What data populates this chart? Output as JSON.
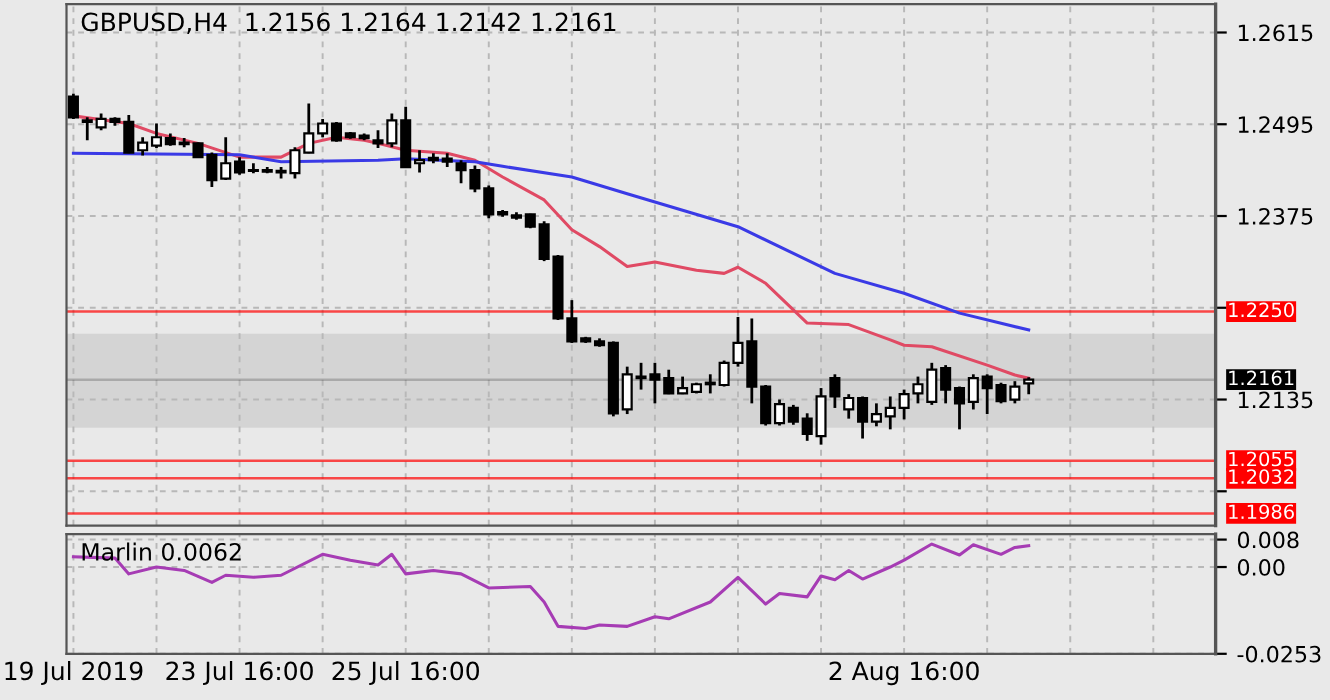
{
  "chart_data": [
    {
      "type": "candlestick",
      "title": "GBPUSD,H4  1.2156 1.2164 1.2142 1.2161",
      "categories": [
        "19 Jul 2019",
        null,
        null,
        null,
        null,
        null,
        null,
        null,
        null,
        null,
        null,
        null,
        "23 Jul 16:00",
        null,
        null,
        null,
        null,
        null,
        null,
        null,
        null,
        null,
        null,
        null,
        "25 Jul 16:00",
        null,
        null,
        null,
        null,
        null,
        null,
        null,
        null,
        null,
        null,
        null,
        null,
        null,
        null,
        null,
        null,
        null,
        null,
        null,
        null,
        null,
        null,
        null,
        null,
        null,
        null,
        null,
        null,
        null,
        null,
        null,
        null,
        null,
        null,
        null,
        "2 Aug 16:00",
        null,
        null,
        null,
        null,
        null,
        null,
        null,
        null,
        null,
        null,
        null,
        null,
        null,
        null,
        null,
        null,
        null,
        null,
        null,
        null,
        null,
        null
      ],
      "ohlc": [
        [
          1.2531,
          1.2535,
          1.2502,
          1.2504
        ],
        [
          1.25,
          1.2504,
          1.2474,
          1.2498
        ],
        [
          1.2491,
          1.2509,
          1.2487,
          1.2502
        ],
        [
          1.2502,
          1.2504,
          1.2493,
          1.2498
        ],
        [
          1.2498,
          1.2507,
          1.2457,
          1.2458
        ],
        [
          1.2461,
          1.2478,
          1.2454,
          1.2471
        ],
        [
          1.2467,
          1.2496,
          1.2464,
          1.2478
        ],
        [
          1.2477,
          1.2483,
          1.2467,
          1.2469
        ],
        [
          1.2471,
          1.2477,
          1.2465,
          1.2469
        ],
        [
          1.247,
          1.2471,
          1.2451,
          1.2452
        ],
        [
          1.2455,
          1.2458,
          1.2413,
          1.2422
        ],
        [
          1.2424,
          1.2478,
          1.2422,
          1.2444
        ],
        [
          1.2446,
          1.2452,
          1.2429,
          1.2432
        ],
        [
          1.2435,
          1.2444,
          1.2431,
          1.2434
        ],
        [
          1.2435,
          1.2439,
          1.2431,
          1.2433
        ],
        [
          1.2434,
          1.2439,
          1.2424,
          1.2432
        ],
        [
          1.2431,
          1.2465,
          1.2424,
          1.2461
        ],
        [
          1.2458,
          1.2522,
          1.2457,
          1.2483
        ],
        [
          1.2483,
          1.2502,
          1.2478,
          1.2496
        ],
        [
          1.2496,
          1.2498,
          1.2472,
          1.2474
        ],
        [
          1.2483,
          1.2485,
          1.2476,
          1.2478
        ],
        [
          1.248,
          1.2483,
          1.2474,
          1.2477
        ],
        [
          1.2474,
          1.2487,
          1.2464,
          1.247
        ],
        [
          1.247,
          1.2509,
          1.2465,
          1.25
        ],
        [
          1.25,
          1.2518,
          1.2438,
          1.2439
        ],
        [
          1.2444,
          1.2461,
          1.2432,
          1.2448
        ],
        [
          1.2448,
          1.2457,
          1.2444,
          1.2451
        ],
        [
          1.245,
          1.2457,
          1.2439,
          1.2446
        ],
        [
          1.2444,
          1.2448,
          1.2418,
          1.2435
        ],
        [
          1.2435,
          1.2441,
          1.2406,
          1.2411
        ],
        [
          1.2411,
          1.2415,
          1.2372,
          1.2377
        ],
        [
          1.238,
          1.2383,
          1.2374,
          1.2377
        ],
        [
          1.2376,
          1.238,
          1.237,
          1.2373
        ],
        [
          1.2377,
          1.2378,
          1.2359,
          1.2361
        ],
        [
          1.2364,
          1.2368,
          1.2316,
          1.2319
        ],
        [
          1.2322,
          1.2324,
          1.2239,
          1.2241
        ],
        [
          1.2241,
          1.2265,
          1.2209,
          1.2211
        ],
        [
          1.2215,
          1.2217,
          1.2209,
          1.2211
        ],
        [
          1.2211,
          1.2215,
          1.2204,
          1.2206
        ],
        [
          1.2209,
          1.2211,
          1.2113,
          1.2117
        ],
        [
          1.2122,
          1.2178,
          1.2116,
          1.2168
        ],
        [
          1.2165,
          1.2183,
          1.2148,
          1.2163
        ],
        [
          1.2168,
          1.2183,
          1.213,
          1.2161
        ],
        [
          1.2163,
          1.2174,
          1.2142,
          1.2143
        ],
        [
          1.2143,
          1.2165,
          1.2142,
          1.215
        ],
        [
          1.2145,
          1.2157,
          1.2143,
          1.2155
        ],
        [
          1.2155,
          1.2168,
          1.2143,
          1.2157
        ],
        [
          1.2154,
          1.2186,
          1.2152,
          1.2183
        ],
        [
          1.2183,
          1.2243,
          1.2178,
          1.2209
        ],
        [
          1.2211,
          1.2241,
          1.213,
          1.2152
        ],
        [
          1.2152,
          1.2154,
          1.2101,
          1.2104
        ],
        [
          1.2104,
          1.2135,
          1.2101,
          1.2129
        ],
        [
          1.2124,
          1.2128,
          1.2102,
          1.2106
        ],
        [
          1.211,
          1.2117,
          1.2081,
          1.209
        ],
        [
          1.2087,
          1.215,
          1.2076,
          1.2139
        ],
        [
          1.2163,
          1.2168,
          1.2124,
          1.2139
        ],
        [
          1.2122,
          1.2142,
          1.211,
          1.2137
        ],
        [
          1.2137,
          1.2139,
          1.2084,
          1.2106
        ],
        [
          1.2106,
          1.213,
          1.21,
          1.2116
        ],
        [
          1.2113,
          1.2139,
          1.2096,
          1.2124
        ],
        [
          1.2124,
          1.2148,
          1.2109,
          1.2142
        ],
        [
          1.2143,
          1.2165,
          1.213,
          1.2155
        ],
        [
          1.2132,
          1.2183,
          1.2128,
          1.2174
        ],
        [
          1.2176,
          1.218,
          1.213,
          1.2148
        ],
        [
          1.215,
          1.2152,
          1.2096,
          1.213
        ],
        [
          1.2132,
          1.2168,
          1.2122,
          1.2163
        ],
        [
          1.2165,
          1.2168,
          1.2116,
          1.215
        ],
        [
          1.2154,
          1.2157,
          1.213,
          1.2133
        ],
        [
          1.2135,
          1.2159,
          1.213,
          1.2152
        ],
        [
          1.2156,
          1.2164,
          1.2142,
          1.2161
        ],
        null,
        null,
        null,
        null,
        null,
        null,
        null,
        null,
        null,
        null,
        null,
        null,
        null
      ],
      "series": [
        {
          "type": "line",
          "color": "#e04a64",
          "values": [
            1.2506,
            null,
            null,
            null,
            1.2496,
            null,
            1.2483,
            null,
            null,
            1.247,
            null,
            null,
            1.2452,
            null,
            null,
            1.2452,
            null,
            1.247,
            null,
            1.2478,
            null,
            1.2474,
            1.247,
            null,
            1.2461,
            null,
            null,
            1.2457,
            null,
            1.2448,
            null,
            1.2426,
            null,
            null,
            1.2396,
            null,
            1.2357,
            null,
            1.2335,
            null,
            1.2309,
            null,
            1.2315,
            null,
            null,
            1.2304,
            null,
            1.23,
            1.2308,
            null,
            1.2287,
            null,
            null,
            1.2235,
            null,
            null,
            1.2233,
            null,
            null,
            1.2213,
            1.2206,
            null,
            1.2204,
            null,
            null,
            null,
            1.218,
            null,
            1.2167,
            1.2163,
            null,
            null,
            null,
            null,
            null,
            null,
            null,
            null,
            null,
            null,
            null,
            null,
            null
          ]
        },
        {
          "type": "line",
          "color": "#3a3ae6",
          "values": [
            1.2457,
            null,
            null,
            null,
            null,
            null,
            null,
            null,
            null,
            null,
            null,
            null,
            1.2455,
            null,
            null,
            1.2446,
            null,
            null,
            null,
            null,
            null,
            null,
            1.2448,
            null,
            1.245,
            null,
            null,
            null,
            null,
            1.2446,
            null,
            1.244,
            null,
            null,
            null,
            null,
            1.2426,
            null,
            null,
            null,
            1.2404,
            null,
            null,
            null,
            null,
            null,
            null,
            null,
            1.2361,
            null,
            null,
            null,
            null,
            null,
            null,
            1.23,
            null,
            null,
            null,
            null,
            1.2274,
            null,
            null,
            null,
            1.2248,
            null,
            null,
            null,
            null,
            1.2226,
            null,
            null,
            null,
            null,
            null,
            null,
            null,
            null,
            null,
            null,
            null,
            null,
            null
          ]
        }
      ],
      "ylim": [
        1.197,
        1.2652
      ],
      "yticks": [
        1.2615,
        1.2495,
        1.2375,
        {
          "value": 1.2255,
          "label": null
        },
        1.2135,
        {
          "value": 1.2015,
          "label": null
        }
      ],
      "ref_lines": [
        {
          "axis": "y",
          "value": 1.225,
          "label": "1.2250",
          "color": "#ff0000"
        },
        {
          "axis": "y",
          "value": 1.2161,
          "label": "1.2161",
          "color": "#000000"
        },
        {
          "axis": "y",
          "value": 1.2055,
          "label": "1.2055",
          "color": "#ff0000"
        },
        {
          "axis": "y",
          "value": 1.2032,
          "label": "1.2032",
          "color": "#ff0000"
        },
        {
          "axis": "y",
          "value": 1.1986,
          "label": "1.1986",
          "color": "#ff0000"
        }
      ],
      "bands": [
        {
          "axis": "y",
          "from": 1.2098,
          "to": 1.2221,
          "color": "#d4d4d4"
        }
      ],
      "grid": true
    },
    {
      "type": "line",
      "title": "Marlin 0.0062",
      "tick_labels": "y",
      "categories": [
        null,
        null,
        null,
        null,
        null,
        null,
        null,
        null,
        null,
        null,
        null,
        null,
        null,
        null,
        null,
        null,
        null,
        null,
        null,
        null,
        null,
        null,
        null,
        null,
        null,
        null,
        null,
        null,
        null,
        null,
        null,
        null,
        null,
        null,
        null,
        null,
        null,
        null,
        null,
        null,
        null,
        null,
        null,
        null,
        null,
        null,
        null,
        null,
        null,
        null,
        null,
        null,
        null,
        null,
        null,
        null,
        null,
        null,
        null,
        null,
        null,
        null,
        null,
        null,
        null,
        null,
        null,
        null,
        null,
        null,
        null,
        null,
        null,
        null,
        null,
        null,
        null,
        null,
        null,
        null,
        null,
        null,
        null
      ],
      "series": [
        {
          "color": "#a63cb4",
          "values": [
            0.003,
            null,
            null,
            0.0026,
            -0.002,
            null,
            0.0,
            null,
            -0.001,
            null,
            -0.0045,
            -0.0024,
            null,
            -0.003,
            null,
            -0.0024,
            null,
            null,
            0.0037,
            null,
            0.002,
            null,
            0.0006,
            0.0037,
            -0.002,
            null,
            -0.001,
            null,
            -0.002,
            null,
            -0.0061,
            null,
            null,
            -0.0057,
            -0.0102,
            -0.0173,
            null,
            -0.0179,
            -0.0169,
            null,
            -0.0173,
            null,
            -0.0145,
            -0.0151,
            null,
            null,
            -0.0102,
            null,
            -0.003,
            null,
            -0.0108,
            -0.0077,
            null,
            -0.0087,
            -0.0026,
            -0.0037,
            -0.001,
            -0.0035,
            null,
            0.0,
            0.002,
            null,
            0.0067,
            null,
            0.0035,
            0.0065,
            null,
            0.0037,
            0.0057,
            0.0062,
            null,
            null,
            null,
            null,
            null,
            null,
            null,
            null,
            null,
            null,
            null,
            null,
            null
          ]
        }
      ],
      "ylim": [
        -0.0253,
        0.0096
      ],
      "yticks": [
        0.008,
        {
          "value": 0.0,
          "label": "0.00"
        },
        -0.0253
      ],
      "grid": true
    }
  ]
}
